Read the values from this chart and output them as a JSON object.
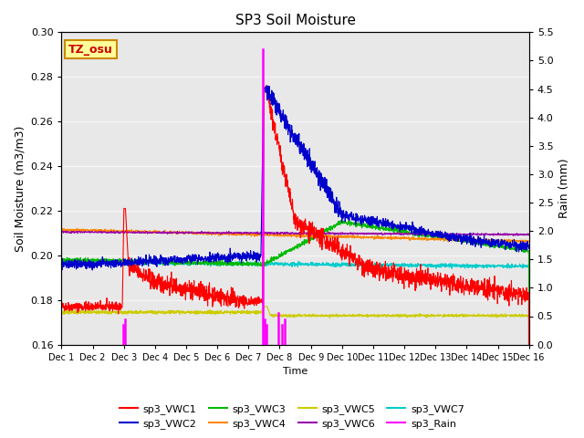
{
  "title": "SP3 Soil Moisture",
  "ylabel_left": "Soil Moisture (m3/m3)",
  "ylabel_right": "Rain (mm)",
  "xlabel": "Time",
  "ylim_left": [
    0.16,
    0.3
  ],
  "ylim_right": [
    0.0,
    5.5
  ],
  "yticks_left": [
    0.16,
    0.18,
    0.2,
    0.22,
    0.24,
    0.26,
    0.28,
    0.3
  ],
  "yticks_right": [
    0.0,
    0.5,
    1.0,
    1.5,
    2.0,
    2.5,
    3.0,
    3.5,
    4.0,
    4.5,
    5.0,
    5.5
  ],
  "xtick_labels": [
    "Dec 1",
    "Dec 2",
    "Dec 3",
    "Dec 4",
    "Dec 5",
    "Dec 6",
    "Dec 7",
    "Dec 8",
    "Dec 9",
    "Dec 10",
    "Dec 11",
    "Dec 12",
    "Dec 13",
    "Dec 14",
    "Dec 15",
    "Dec 16"
  ],
  "xtick_positions": [
    0,
    1,
    2,
    3,
    4,
    5,
    6,
    7,
    8,
    9,
    10,
    11,
    12,
    13,
    14,
    15
  ],
  "background_color": "#e8e8e8",
  "legend_entries": [
    "sp3_VWC1",
    "sp3_VWC2",
    "sp3_VWC3",
    "sp3_VWC4",
    "sp3_VWC5",
    "sp3_VWC6",
    "sp3_VWC7",
    "sp3_Rain"
  ],
  "colors": {
    "VWC1": "#ff0000",
    "VWC2": "#0000cc",
    "VWC3": "#00bb00",
    "VWC4": "#ff8800",
    "VWC5": "#cccc00",
    "VWC6": "#9900aa",
    "VWC7": "#00cccc",
    "Rain": "#ff00ff"
  },
  "annotation_text": "TZ_osu",
  "annotation_color": "#cc0000",
  "annotation_bg": "#ffff99",
  "annotation_border": "#cc8800",
  "rain_events": [
    [
      1.98,
      0.35
    ],
    [
      2.03,
      0.45
    ],
    [
      6.47,
      5.2
    ],
    [
      6.52,
      0.45
    ],
    [
      6.57,
      0.35
    ],
    [
      6.97,
      0.55
    ],
    [
      7.07,
      0.35
    ],
    [
      7.17,
      0.45
    ]
  ]
}
